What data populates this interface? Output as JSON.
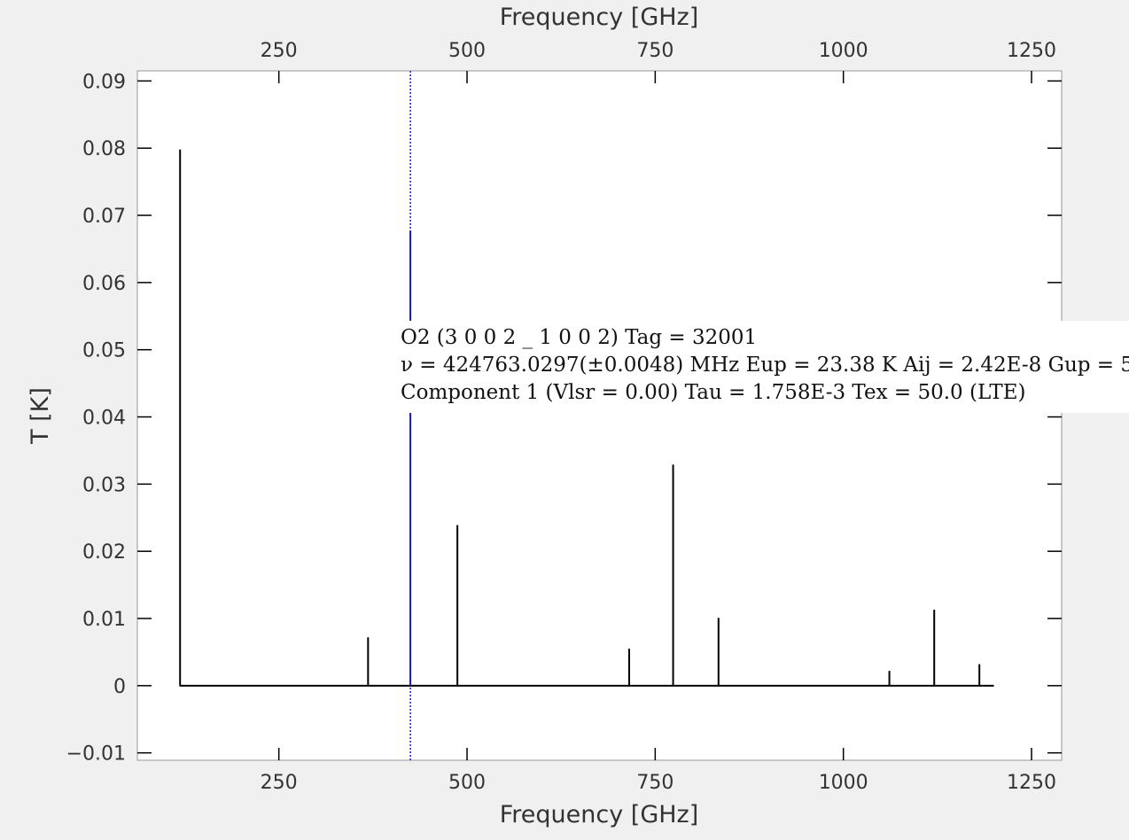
{
  "chart_data": {
    "type": "bar",
    "subtype": "stick-spectrum",
    "xlabel": "Frequency [GHz]",
    "x2label": "Frequency [GHz]",
    "ylabel": "T [K]",
    "xlim": [
      62,
      1290
    ],
    "ylim": [
      -0.0111,
      0.0915
    ],
    "x_ticks": [
      "250",
      "500",
      "750",
      "1000",
      "1250"
    ],
    "x_tick_values": [
      250,
      500,
      750,
      1000,
      1250
    ],
    "y_ticks": [
      "0.09",
      "0.08",
      "0.07",
      "0.06",
      "0.05",
      "0.04",
      "0.03",
      "0.02",
      "0.01",
      "0",
      "−0.01"
    ],
    "y_tick_values": [
      0.09,
      0.08,
      0.07,
      0.06,
      0.05,
      0.04,
      0.03,
      0.02,
      0.01,
      0,
      -0.01
    ],
    "baseline_range": [
      118,
      1200
    ],
    "lines": [
      {
        "x": 118.75,
        "y": 0.0798
      },
      {
        "x": 368.5,
        "y": 0.0072
      },
      {
        "x": 424.76,
        "y": 0.0677,
        "selected": true
      },
      {
        "x": 487.2,
        "y": 0.0239
      },
      {
        "x": 715.4,
        "y": 0.0055
      },
      {
        "x": 773.8,
        "y": 0.0329
      },
      {
        "x": 834.1,
        "y": 0.0101
      },
      {
        "x": 1061.1,
        "y": 0.0022
      },
      {
        "x": 1120.7,
        "y": 0.0113
      },
      {
        "x": 1180.7,
        "y": 0.0032
      }
    ],
    "selected_marker": {
      "x": 424.76,
      "color": "#1a1acc",
      "style": "dotted"
    },
    "line_color": "#000000",
    "grid": false,
    "legend": "none"
  },
  "tooltip": {
    "line1": "O2 (3 0 0 2 _ 1 0 0 2) Tag = 32001",
    "line2": "ν = 424763.0297(±0.0048) MHz Eup = 23.38 K Aij = 2.42E-8 Gup = 5",
    "line3": "Component 1 (Vlsr = 0.00) Tau = 1.758E-3 Tex = 50.0 (LTE)"
  }
}
